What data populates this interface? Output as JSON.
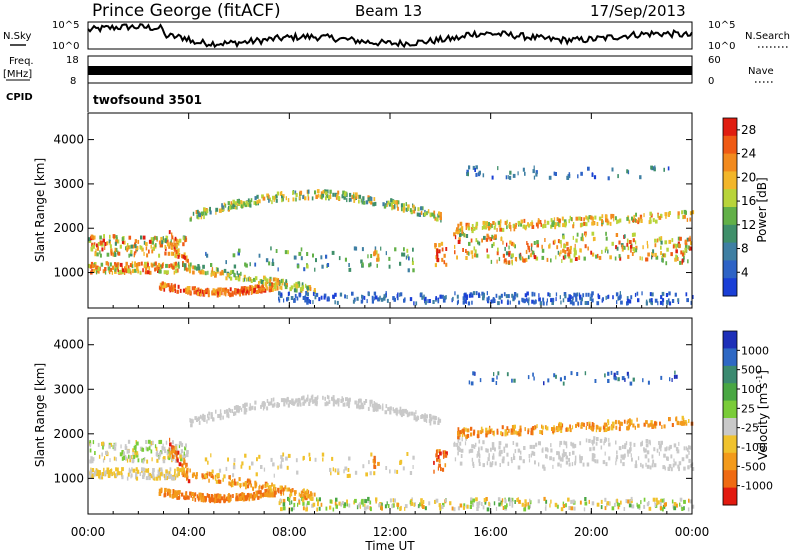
{
  "header": {
    "station": "Prince George (fitACF)",
    "beam": "Beam 13",
    "date": "17/Sep/2013"
  },
  "noise_panel": {
    "left_label": "N.Sky",
    "left_ticks": [
      "10^5",
      "10^0"
    ],
    "right_label": "N.Search",
    "right_ticks": [
      "10^5",
      "10^0"
    ]
  },
  "freq_panel": {
    "left_label_1": "Freq.",
    "left_label_2": "[MHz]",
    "left_ticks": [
      "18",
      "8"
    ],
    "right_label": "Nave",
    "right_ticks": [
      "60",
      "0"
    ]
  },
  "cpid": {
    "label": "CPID",
    "value": "twofsound 3501"
  },
  "colors": {
    "power_scale": [
      "#1a3fd6",
      "#2e63c6",
      "#3f7fa3",
      "#3f8f6a",
      "#62b048",
      "#b8d43a",
      "#f2b62a",
      "#f28a1e",
      "#ef5a14",
      "#e01d10"
    ],
    "velocity_scale": [
      "#1d2fb8",
      "#2e68c4",
      "#3b8a70",
      "#49a743",
      "#7acc39",
      "#c9c9c9",
      "#f0c22d",
      "#f39a1b",
      "#ef6a12",
      "#e21a0f"
    ]
  },
  "chart_data": [
    {
      "type": "heatmap",
      "panel": "power",
      "ylabel": "Slant Range [km]",
      "y_ticks": [
        1000,
        2000,
        3000,
        4000
      ],
      "ylim": [
        200,
        4600
      ],
      "x_ticks": [
        "00:00",
        "04:00",
        "08:00",
        "12:00",
        "16:00",
        "20:00",
        "00:00"
      ],
      "xlim_hours": [
        0,
        24
      ],
      "colorbar_label": "Power [dB]",
      "colorbar_ticks": [
        4,
        8,
        12,
        16,
        20,
        24,
        28
      ],
      "colorbar_range": [
        0,
        30
      ]
    },
    {
      "type": "heatmap",
      "panel": "velocity",
      "ylabel": "Slant Range [km]",
      "y_ticks": [
        1000,
        2000,
        3000,
        4000
      ],
      "ylim": [
        200,
        4600
      ],
      "x_ticks": [
        "00:00",
        "04:00",
        "08:00",
        "12:00",
        "16:00",
        "20:00",
        "00:00"
      ],
      "xlabel": "Time UT",
      "xlim_hours": [
        0,
        24
      ],
      "colorbar_label": "Velocity [m s^-1]",
      "colorbar_ticks": [
        "1000",
        "500",
        "100",
        "25",
        "-25",
        "-100",
        "-500",
        "-1000"
      ]
    }
  ]
}
